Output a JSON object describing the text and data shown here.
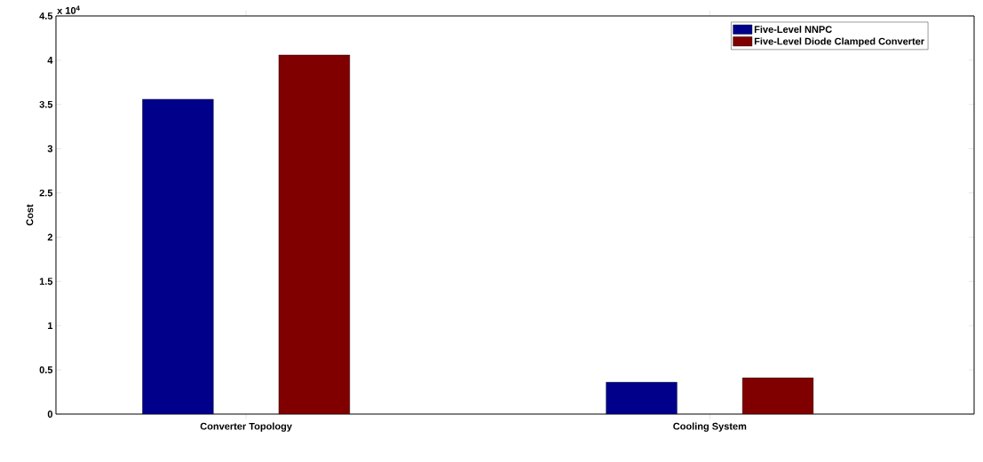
{
  "chart_data": {
    "type": "bar",
    "ylabel": "Cost",
    "categories": [
      "Converter Topology",
      "Cooling System"
    ],
    "series": [
      {
        "name": "Five-Level NNPC",
        "color": "#00008b",
        "values": [
          3.56,
          0.36
        ]
      },
      {
        "name": "Five-Level Diode Clamped Converter",
        "color": "#800000",
        "values": [
          4.06,
          0.41
        ]
      }
    ],
    "ylim": [
      0,
      4.5
    ],
    "yticks": [
      0,
      0.5,
      1,
      1.5,
      2,
      2.5,
      3,
      3.5,
      4,
      4.5
    ],
    "annotations": [
      "x 10$^{4}$"
    ],
    "legend": "top right",
    "grid": false
  }
}
